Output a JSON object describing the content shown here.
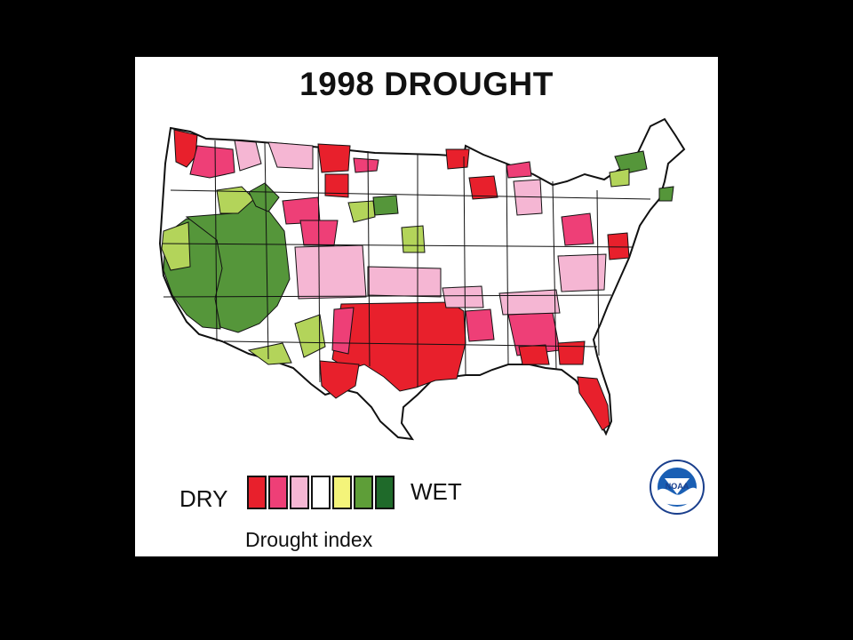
{
  "title": "1998 DROUGHT",
  "legend": {
    "dry_label": "DRY",
    "wet_label": "WET",
    "caption": "Drought index",
    "classes": [
      {
        "color": "#e8202c"
      },
      {
        "color": "#ee3f77"
      },
      {
        "color": "#f5b6d3"
      },
      {
        "color": "#ffffff"
      },
      {
        "color": "#f4f47a"
      },
      {
        "color": "#5e9e38"
      },
      {
        "color": "#1f6a2a"
      }
    ]
  },
  "logo": {
    "icon": "noaa-logo-icon",
    "text": "NOAA"
  },
  "colors": {
    "extreme_dry": "#e8202c",
    "severe_dry": "#ee3f77",
    "moderate_dry": "#f5b6d3",
    "normal": "#ffffff",
    "moderate_wet": "#b3d45a",
    "very_wet": "#55963a",
    "extreme_wet": "#2e7a2e",
    "border": "#111111"
  }
}
